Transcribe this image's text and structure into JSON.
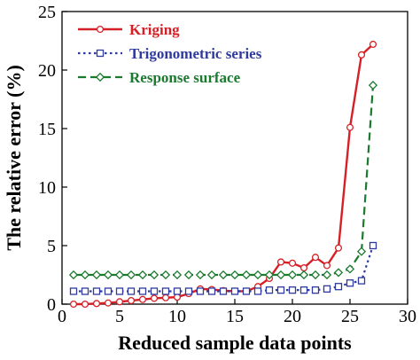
{
  "chart_data": {
    "type": "line",
    "xlabel": "Reduced sample data points",
    "ylabel": "The relative error (%)",
    "xlim": [
      0,
      30
    ],
    "ylim": [
      0,
      25
    ],
    "xticks": [
      "0",
      "5",
      "10",
      "15",
      "20",
      "25",
      "30"
    ],
    "yticks": [
      "0",
      "5",
      "10",
      "15",
      "20",
      "25"
    ],
    "legend_position": "top-left",
    "grid": false,
    "series": [
      {
        "name": "Kriging",
        "color": "#d62027",
        "line_style": "solid",
        "marker": "circle",
        "x": [
          1,
          2,
          3,
          4,
          5,
          6,
          7,
          8,
          9,
          10,
          11,
          12,
          13,
          14,
          15,
          16,
          17,
          18,
          19,
          20,
          21,
          22,
          23,
          24,
          25,
          26,
          27
        ],
        "y": [
          0.0,
          0.0,
          0.05,
          0.1,
          0.2,
          0.3,
          0.4,
          0.5,
          0.55,
          0.6,
          0.9,
          1.3,
          1.25,
          1.15,
          1.1,
          1.1,
          1.5,
          2.2,
          3.6,
          3.5,
          3.1,
          4.0,
          3.3,
          4.8,
          15.1,
          21.3,
          22.2
        ]
      },
      {
        "name": "Trigonometric series",
        "color": "#2f3a9e",
        "line_style": "dotted",
        "marker": "square",
        "x": [
          1,
          2,
          3,
          4,
          5,
          6,
          7,
          8,
          9,
          10,
          11,
          12,
          13,
          14,
          15,
          16,
          17,
          18,
          19,
          20,
          21,
          22,
          23,
          24,
          25,
          26,
          27
        ],
        "y": [
          1.1,
          1.1,
          1.1,
          1.1,
          1.1,
          1.1,
          1.1,
          1.1,
          1.1,
          1.1,
          1.1,
          1.1,
          1.1,
          1.1,
          1.1,
          1.1,
          1.1,
          1.2,
          1.2,
          1.2,
          1.2,
          1.2,
          1.3,
          1.5,
          1.8,
          2.0,
          5.0
        ]
      },
      {
        "name": "Response surface",
        "color": "#1a7a2e",
        "line_style": "dashed",
        "marker": "diamond",
        "x": [
          1,
          2,
          3,
          4,
          5,
          6,
          7,
          8,
          9,
          10,
          11,
          12,
          13,
          14,
          15,
          16,
          17,
          18,
          19,
          20,
          21,
          22,
          23,
          24,
          25,
          26,
          27
        ],
        "y": [
          2.5,
          2.5,
          2.5,
          2.5,
          2.5,
          2.5,
          2.5,
          2.5,
          2.5,
          2.5,
          2.5,
          2.5,
          2.5,
          2.5,
          2.5,
          2.5,
          2.5,
          2.5,
          2.5,
          2.5,
          2.5,
          2.5,
          2.5,
          2.7,
          3.0,
          4.5,
          18.7
        ]
      }
    ]
  }
}
